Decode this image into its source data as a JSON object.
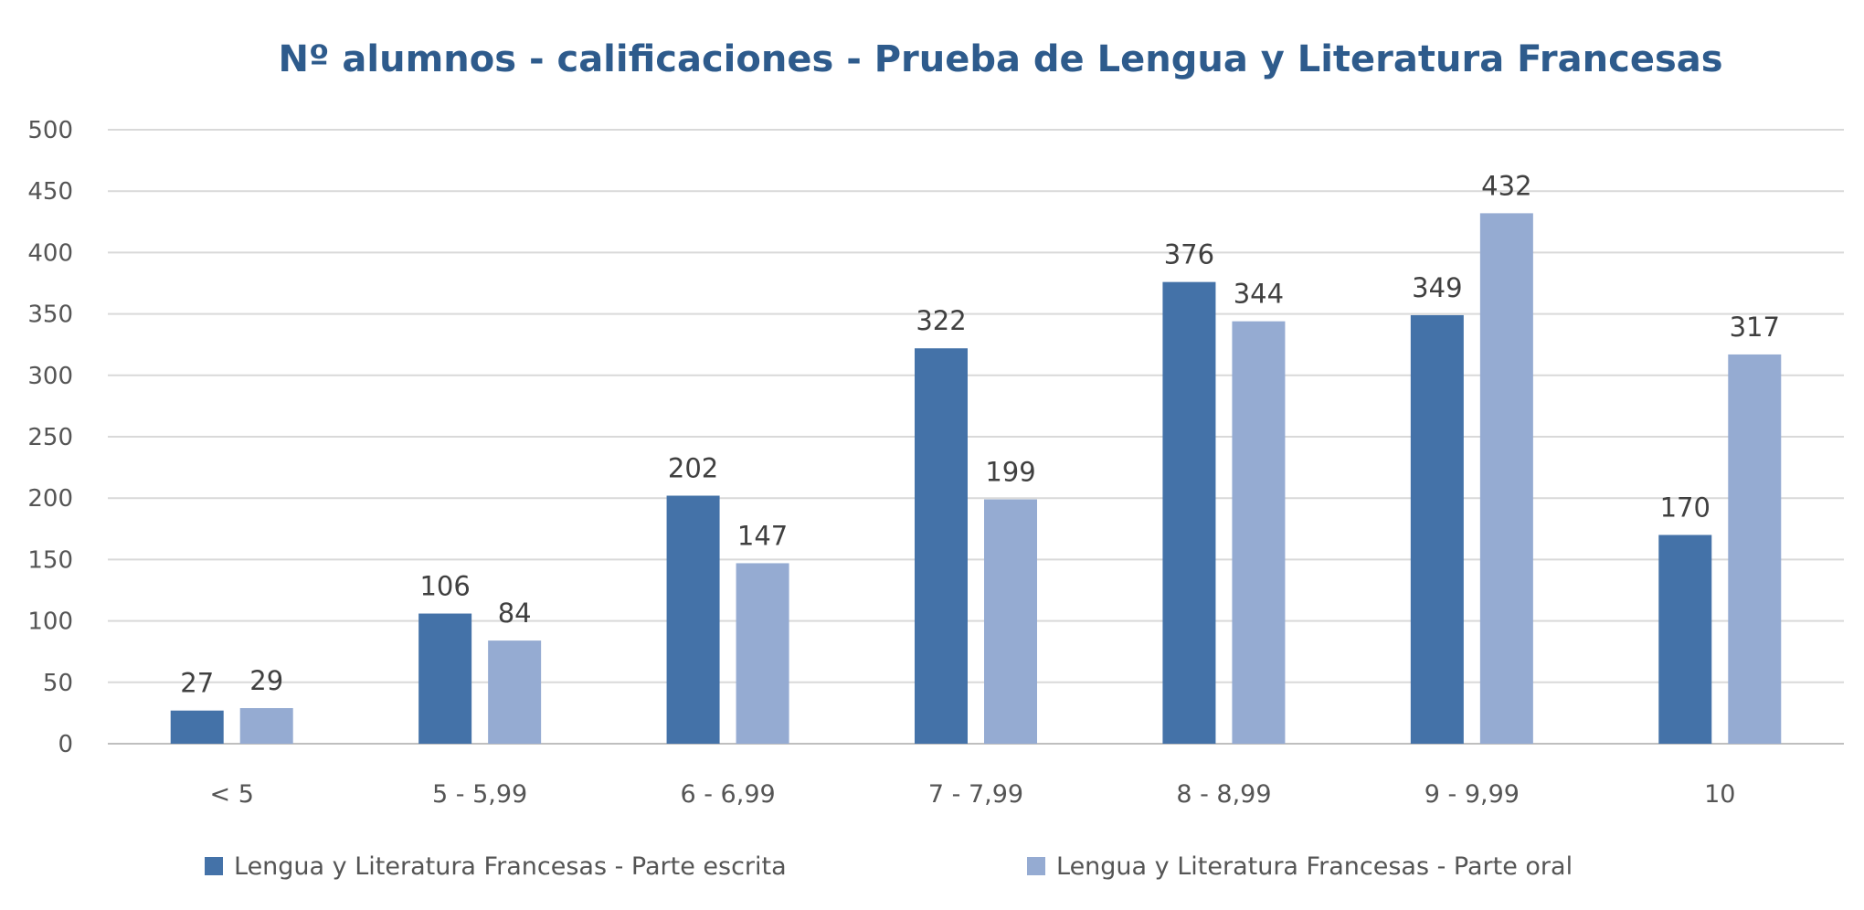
{
  "chart_data": {
    "type": "bar",
    "title": "Nº alumnos - calificaciones - Prueba de Lengua y Literatura Francesas",
    "xlabel": "",
    "ylabel": "",
    "ylim": [
      0,
      500
    ],
    "yticks": [
      0,
      50,
      100,
      150,
      200,
      250,
      300,
      350,
      400,
      450,
      500
    ],
    "ytick_labels": [
      "0",
      "50",
      "100",
      "150",
      "200",
      "250",
      "300",
      "350",
      "400",
      "450",
      "500"
    ],
    "grid": true,
    "legend_position": "bottom",
    "categories": [
      "< 5",
      "5 - 5,99",
      "6 - 6,99",
      "7 - 7,99",
      "8 - 8,99",
      "9 - 9,99",
      "10"
    ],
    "series": [
      {
        "name": "Lengua y Literatura Francesas - Parte escrita",
        "color": "#4472a8",
        "values": [
          27,
          106,
          202,
          322,
          376,
          349,
          170
        ]
      },
      {
        "name": "Lengua y Literatura Francesas - Parte oral",
        "color": "#95abd2",
        "values": [
          29,
          84,
          147,
          199,
          344,
          432,
          317
        ]
      }
    ]
  }
}
